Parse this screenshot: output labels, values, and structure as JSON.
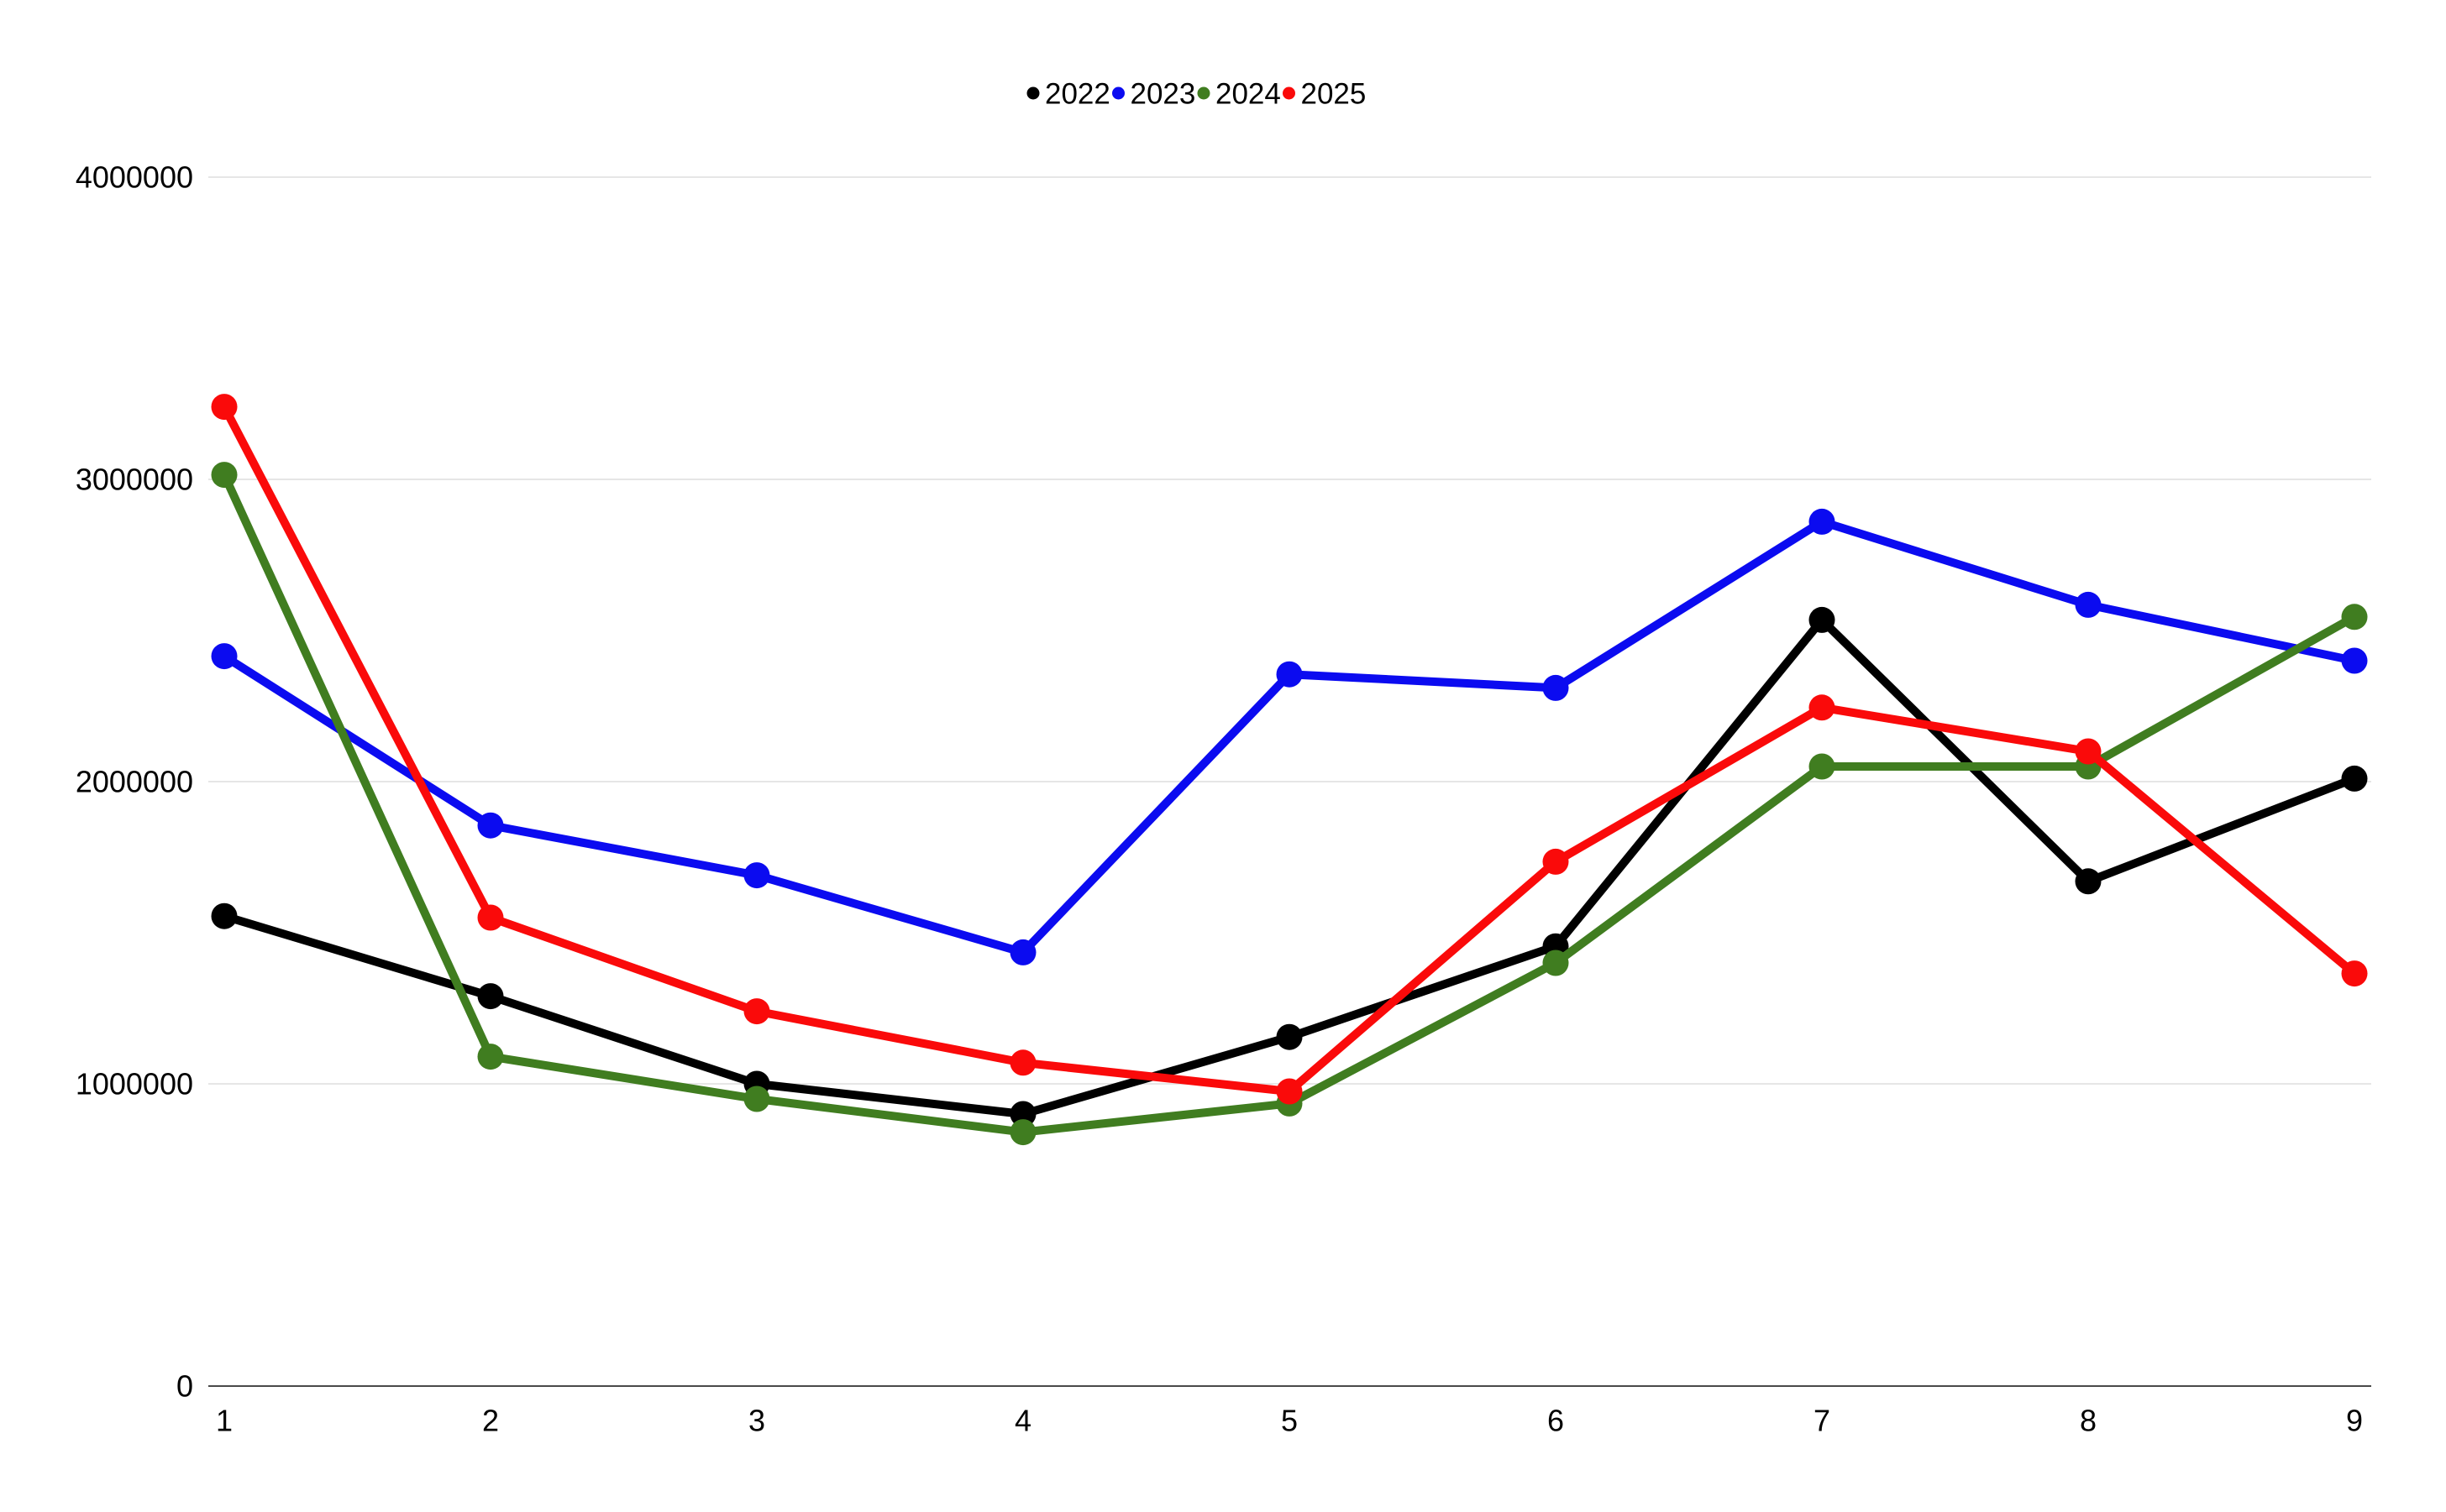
{
  "page": {
    "background_color": "#ffffff",
    "text_color": "#000000"
  },
  "chart_data": {
    "type": "line",
    "title": "",
    "xlabel": "",
    "ylabel": "",
    "categories": [
      "1",
      "2",
      "3",
      "4",
      "5",
      "6",
      "7",
      "8",
      "9"
    ],
    "series": [
      {
        "name": "2022",
        "color": "#000000",
        "values": [
          1555000,
          1290000,
          1000000,
          900000,
          1155000,
          1455000,
          2535000,
          1670000,
          2010000
        ]
      },
      {
        "name": "2023",
        "color": "#0b0bf0",
        "values": [
          2415000,
          1855000,
          1690000,
          1435000,
          2355000,
          2310000,
          2860000,
          2585000,
          2400000
        ]
      },
      {
        "name": "2024",
        "color": "#407d20",
        "values": [
          3015000,
          1090000,
          950000,
          840000,
          935000,
          1400000,
          2050000,
          2050000,
          2545000
        ]
      },
      {
        "name": "2025",
        "color": "#fa0a0a",
        "values": [
          3240000,
          1550000,
          1240000,
          1070000,
          975000,
          1735000,
          2245000,
          2100000,
          1365000
        ]
      }
    ],
    "ylim": [
      0,
      4000000
    ],
    "y_ticks": [
      0,
      1000000,
      2000000,
      3000000,
      4000000
    ],
    "y_tick_labels": [
      "0",
      "1000000",
      "2000000",
      "3000000",
      "4000000"
    ],
    "legend_position": "top-center",
    "grid": "horizontal",
    "gridline_color": "#e6e6e6",
    "axis_line_color": "#4a4a4a",
    "tick_label_color": "#000000"
  }
}
